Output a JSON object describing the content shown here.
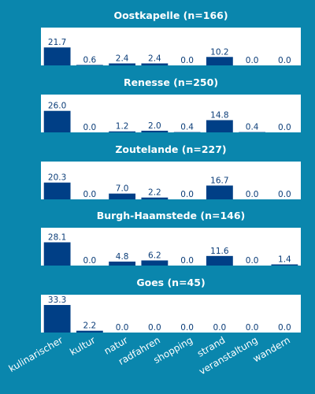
{
  "colors": {
    "background": "#0a86ad",
    "panel": "#ffffff",
    "bar": "#003f86",
    "label": "#0b3d78",
    "title": "#ffffff"
  },
  "chart_data": {
    "type": "bar",
    "categories": [
      "kulinarischer",
      "kultur",
      "natur",
      "radfahren",
      "shopping",
      "strand",
      "veranstaltung",
      "wandern"
    ],
    "ylim": [
      0,
      40
    ],
    "grid": false,
    "panels": [
      {
        "title": "Oostkapelle (n=166)",
        "values": [
          21.7,
          0.6,
          2.4,
          2.4,
          0.0,
          10.2,
          0.0,
          0.0
        ],
        "labels": [
          "21.7",
          "0.6",
          "2.4",
          "2.4",
          "0.0",
          "10.2",
          "0.0",
          "0.0"
        ]
      },
      {
        "title": "Renesse (n=250)",
        "values": [
          26.0,
          0.0,
          1.2,
          2.0,
          0.4,
          14.8,
          0.4,
          0.0
        ],
        "labels": [
          "26.0",
          "0.0",
          "1.2",
          "2.0",
          "0.4",
          "14.8",
          "0.4",
          "0.0"
        ]
      },
      {
        "title": "Zoutelande (n=227)",
        "values": [
          20.3,
          0.0,
          7.0,
          2.2,
          0.0,
          16.7,
          0.0,
          0.0
        ],
        "labels": [
          "20.3",
          "0.0",
          "7.0",
          "2.2",
          "0.0",
          "16.7",
          "0.0",
          "0.0"
        ]
      },
      {
        "title": "Burgh-Haamstede (n=146)",
        "values": [
          28.1,
          0.0,
          4.8,
          6.2,
          0.0,
          11.6,
          0.0,
          1.4
        ],
        "labels": [
          "28.1",
          "0.0",
          "4.8",
          "6.2",
          "0.0",
          "11.6",
          "0.0",
          "1.4"
        ]
      },
      {
        "title": "Goes (n=45)",
        "values": [
          33.3,
          2.2,
          0.0,
          0.0,
          0.0,
          0.0,
          0.0,
          0.0
        ],
        "labels": [
          "33.3",
          "2.2",
          "0.0",
          "0.0",
          "0.0",
          "0.0",
          "0.0",
          "0.0"
        ]
      }
    ]
  }
}
